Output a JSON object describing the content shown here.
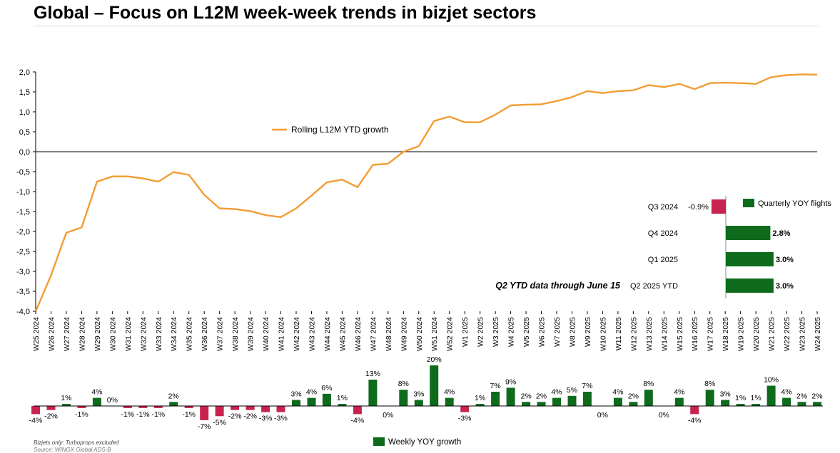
{
  "page": {
    "title": "Global – Focus on L12M week-week trends in bizjet sectors",
    "footnote": "Bizjets only: Turboprops excluded",
    "source": "Source: WINGX Global ADS-B"
  },
  "colors": {
    "line": "#f39c33",
    "positive": "#0e6b1c",
    "negative": "#c8234e",
    "axis": "#000000"
  },
  "chart_data": [
    {
      "type": "line",
      "series": [
        {
          "name": "Rolling L12M YTD growth",
          "values": [
            -4.0,
            -3.1,
            -2.03,
            -1.9,
            -0.75,
            -0.62,
            -0.62,
            -0.67,
            -0.75,
            -0.51,
            -0.58,
            -1.08,
            -1.42,
            -1.44,
            -1.49,
            -1.59,
            -1.64,
            -1.42,
            -1.1,
            -0.77,
            -0.7,
            -0.89,
            -0.33,
            -0.3,
            0.0,
            0.14,
            0.77,
            0.88,
            0.74,
            0.74,
            0.93,
            1.16,
            1.18,
            1.19,
            1.27,
            1.37,
            1.52,
            1.47,
            1.52,
            1.54,
            1.67,
            1.62,
            1.7,
            1.57,
            1.72,
            1.73,
            1.72,
            1.7,
            1.87,
            1.92,
            1.94,
            1.93
          ]
        }
      ],
      "x": [
        "W25 2024",
        "W26 2024",
        "W27 2024",
        "W28 2024",
        "W29 2024",
        "W30 2024",
        "W31 2024",
        "W32 2024",
        "W33 2024",
        "W34 2024",
        "W35 2024",
        "W36 2024",
        "W37 2024",
        "W38 2024",
        "W39 2024",
        "W40 2024",
        "W41 2024",
        "W42 2024",
        "W43 2024",
        "W44 2024",
        "W45 2024",
        "W46 2024",
        "W47 2024",
        "W48 2024",
        "W49 2024",
        "W50 2024",
        "W51 2024",
        "W52 2024",
        "W1 2025",
        "W2 2025",
        "W3 2025",
        "W4 2025",
        "W5 2025",
        "W6 2025",
        "W7 2025",
        "W8 2025",
        "W9 2025",
        "W10 2025",
        "W11 2025",
        "W12 2025",
        "W13 2025",
        "W14 2025",
        "W15 2025",
        "W16 2025",
        "W17 2025",
        "W18 2025",
        "W19 2025",
        "W20 2025",
        "W21 2025",
        "W22 2025",
        "W23 2025",
        "W24 2025"
      ],
      "ylim": [
        -4.0,
        2.0
      ],
      "yticks": [
        "2,0",
        "1,5",
        "1,0",
        "0,5",
        "0,0",
        "-0,5",
        "-1,0",
        "-1,5",
        "-2,0",
        "-2,5",
        "-3,0",
        "-3,5",
        "-4,0"
      ],
      "legend": "top-left"
    },
    {
      "type": "bar",
      "series": [
        {
          "name": "Weekly YOY growth",
          "values": [
            -4,
            -2,
            1,
            -1,
            4,
            0,
            -1,
            -1,
            -1,
            2,
            -1,
            -7,
            -5,
            -2,
            -2,
            -3,
            -3,
            3,
            4,
            6,
            1,
            -4,
            13,
            0,
            8,
            3,
            20,
            4,
            -3,
            1,
            7,
            9,
            2,
            2,
            4,
            5,
            7,
            0,
            4,
            2,
            8,
            0,
            4,
            -4,
            8,
            3,
            1,
            1,
            10,
            4,
            2,
            2
          ],
          "labels": [
            "-4%",
            "-2%",
            "1%",
            "-1%",
            "4%",
            "0%",
            "-1%",
            "-1%",
            "-1%",
            "2%",
            "-1%",
            "-7%",
            "-5%",
            "-2%",
            "-2%",
            "-3%",
            "-3%",
            "3%",
            "4%",
            "6%",
            "1%",
            "-4%",
            "13%",
            "0%",
            "8%",
            "3%",
            "20%",
            "4%",
            "-3%",
            "1%",
            "7%",
            "9%",
            "2%",
            "2%",
            "4%",
            "5%",
            "7%",
            "0%",
            "4%",
            "2%",
            "8%",
            "0%",
            "4%",
            "-4%",
            "8%",
            "3%",
            "1%",
            "1%",
            "10%",
            "4%",
            "2%",
            "2%"
          ]
        }
      ],
      "legend": "bottom-center"
    },
    {
      "type": "bar",
      "orientation": "horizontal",
      "categories": [
        "Q3 2024",
        "Q4 2024",
        "Q1 2025",
        "Q2 2025 YTD"
      ],
      "series": [
        {
          "name": "Quarterly YOY flights",
          "values": [
            -0.9,
            2.8,
            3.0,
            3.0
          ],
          "labels": [
            "-0.9%",
            "2.8%",
            "3.0%",
            "3.0%"
          ]
        }
      ],
      "annotation": "Q2 YTD data through June 15",
      "legend": "top-right"
    }
  ]
}
